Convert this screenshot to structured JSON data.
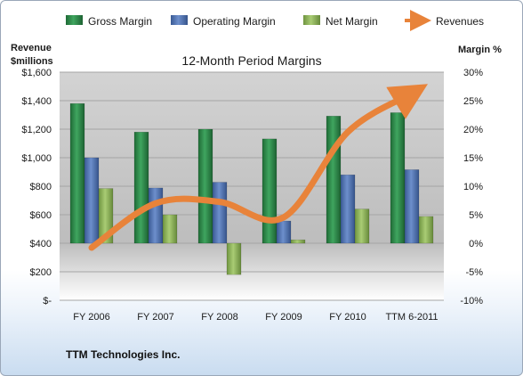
{
  "chart_data": {
    "type": "bar",
    "title": "12-Month Period Margins",
    "categories": [
      "FY 2006",
      "FY 2007",
      "FY 2008",
      "FY 2009",
      "FY 2010",
      "TTM 6-2011"
    ],
    "series": [
      {
        "name": "Gross Margin",
        "axis": "right",
        "values": [
          24.5,
          19.5,
          20.0,
          18.3,
          22.3,
          22.9
        ]
      },
      {
        "name": "Operating Margin",
        "axis": "right",
        "values": [
          15.0,
          9.7,
          10.7,
          3.9,
          12.0,
          12.9
        ]
      },
      {
        "name": "Net Margin",
        "axis": "right",
        "values": [
          9.6,
          5.0,
          -5.5,
          0.6,
          6.0,
          4.7
        ]
      },
      {
        "name": "Revenues",
        "type": "line",
        "axis": "left",
        "values": [
          369,
          680,
          690,
          582,
          1180,
          1450
        ]
      }
    ],
    "left_axis": {
      "label_line1": "Revenue",
      "label_line2": "$millions",
      "range": [
        0,
        1600
      ],
      "ticks": [
        "$-",
        "$200",
        "$400",
        "$600",
        "$800",
        "$1,000",
        "$1,200",
        "$1,400",
        "$1,600"
      ]
    },
    "right_axis": {
      "label": "Margin %",
      "range": [
        -10,
        30
      ],
      "ticks": [
        "-10%",
        "-5%",
        "0%",
        "5%",
        "10%",
        "15%",
        "20%",
        "25%",
        "30%"
      ]
    },
    "legend_position": "top",
    "grid": true,
    "colors": {
      "gross": "#2e8b4a",
      "operating": "#4f73b4",
      "net": "#8db35a",
      "revenue": "#e8833a"
    }
  },
  "footer": {
    "company": "TTM Technologies Inc."
  }
}
